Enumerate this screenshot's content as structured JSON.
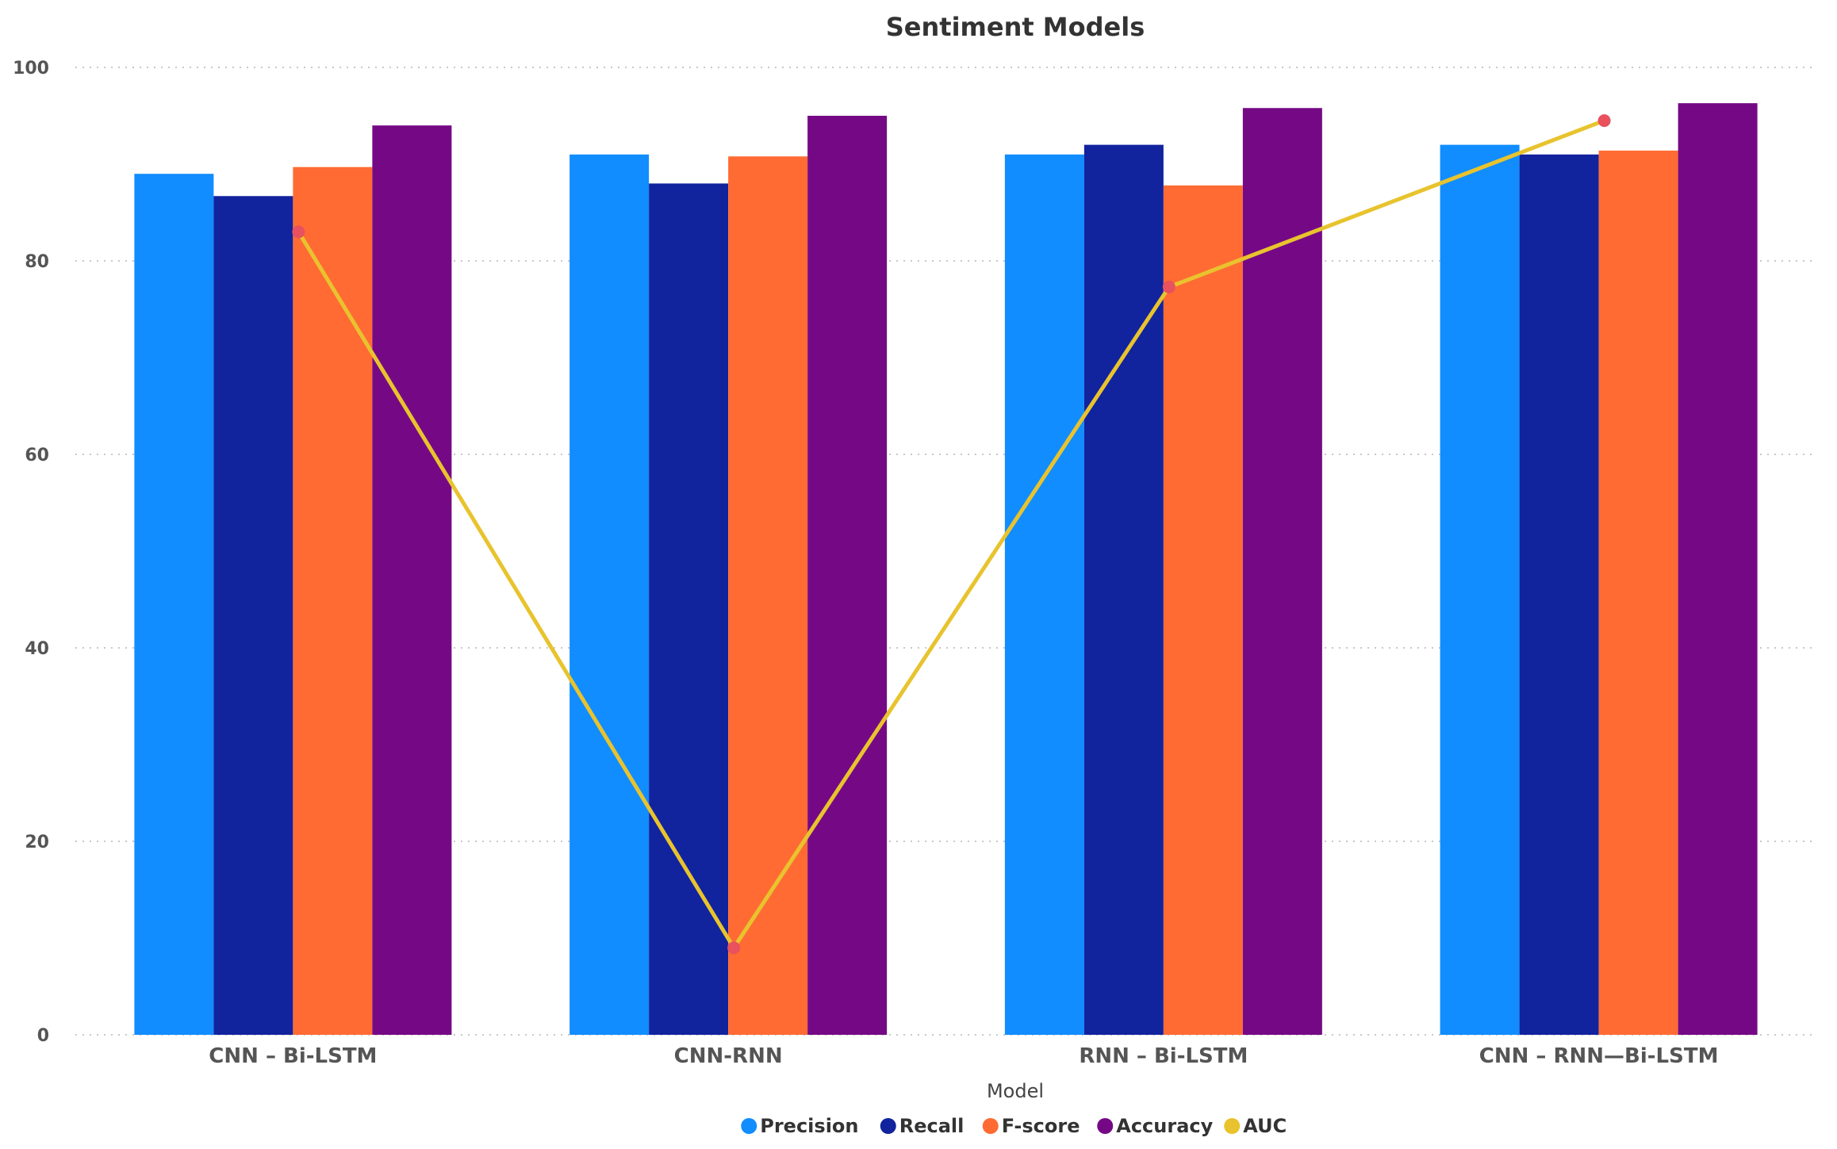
{
  "chart_data": {
    "type": "bar",
    "title": "Sentiment Models",
    "xlabel": "Model",
    "ylabel": "",
    "ylim": [
      0,
      100
    ],
    "yticks": [
      "0",
      "20",
      "40",
      "60",
      "80",
      "100"
    ],
    "grid": true,
    "legend_position": "bottom",
    "categories": [
      "CNN – Bi-LSTM",
      "CNN-RNN",
      "RNN – Bi-LSTM",
      "CNN – RNN—Bi-LSTM"
    ],
    "series": [
      {
        "name": "Precision",
        "type": "bar",
        "color": "#118DFF",
        "values": [
          89,
          91,
          91,
          92
        ]
      },
      {
        "name": "Recall",
        "type": "bar",
        "color": "#12239E",
        "values": [
          86.7,
          88,
          92,
          91
        ]
      },
      {
        "name": "F-score",
        "type": "bar",
        "color": "#FF6B33",
        "values": [
          89.7,
          90.8,
          87.8,
          91.4
        ]
      },
      {
        "name": "Accuracy",
        "type": "bar",
        "color": "#750985",
        "values": [
          94,
          95,
          95.8,
          96.3
        ]
      },
      {
        "name": "AUC",
        "type": "line",
        "color": "#E8C32E",
        "marker_color": "#E8515D",
        "values": [
          83,
          9,
          77.3,
          94.5
        ]
      }
    ]
  }
}
